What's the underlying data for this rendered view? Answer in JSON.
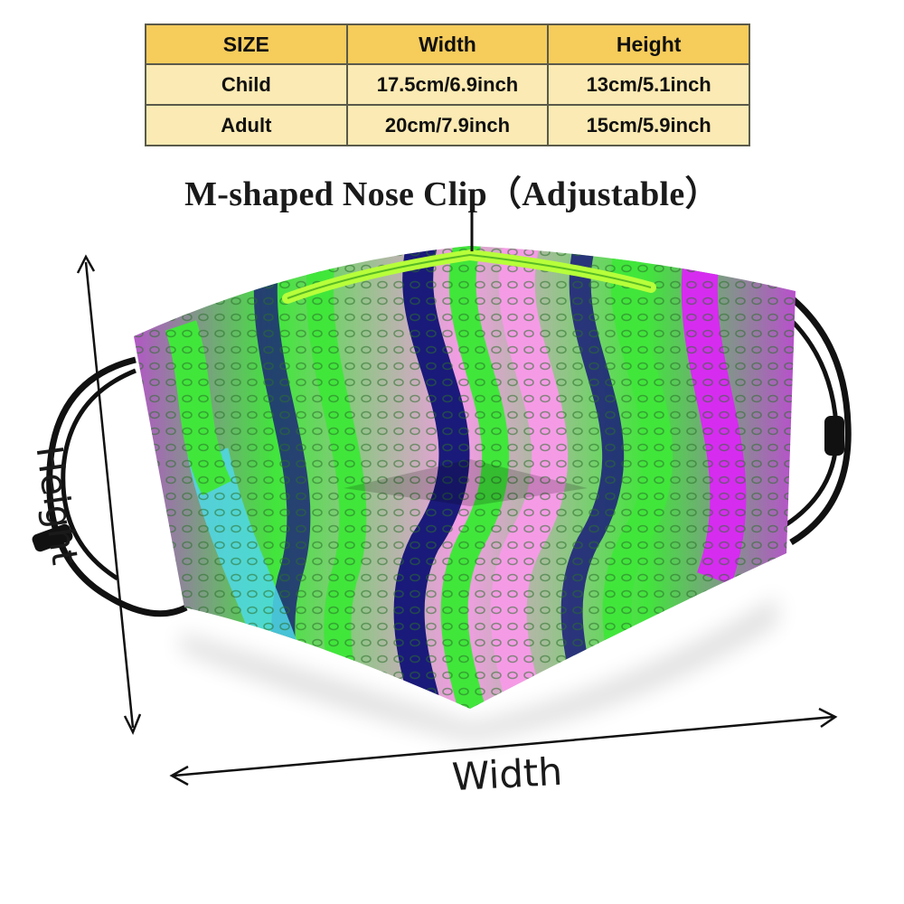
{
  "size_table": {
    "header": [
      "SIZE",
      "Width",
      "Height"
    ],
    "rows": [
      {
        "size": "Child",
        "width": "17.5cm/6.9inch",
        "height": "13cm/5.1inch"
      },
      {
        "size": "Adult",
        "width": "20cm/7.9inch",
        "height": "15cm/5.9inch"
      }
    ]
  },
  "nose_clip_label": "M-shaped Nose Clip（Adjustable）",
  "dimension_labels": {
    "height": "Height",
    "width": "Width"
  },
  "colors": {
    "table_header": "#f6cc5b",
    "table_body": "#fbeab3",
    "magenta": "#d62cf0",
    "green": "#41e63b",
    "pink": "#f59be6",
    "navy": "#1a1a7a",
    "cyan": "#4fd8e8",
    "nose_clip": "#b7ff3a",
    "strap": "#111111"
  }
}
